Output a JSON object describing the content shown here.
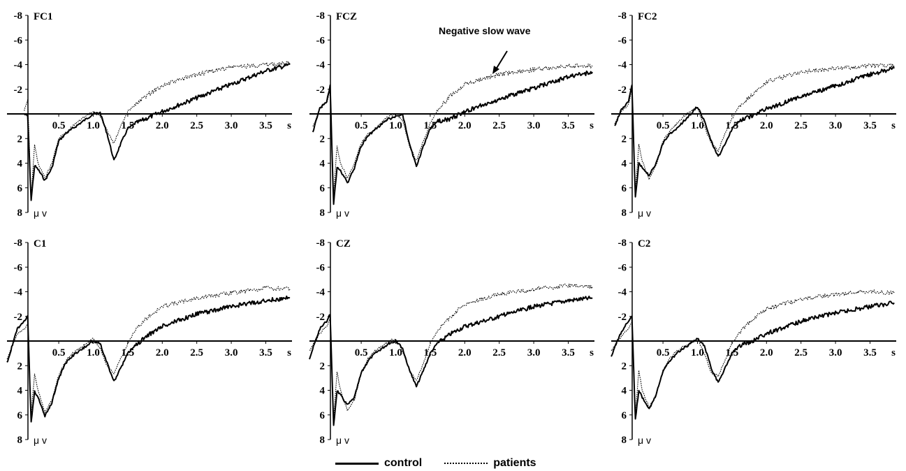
{
  "figure": {
    "annotation": "Negative slow wave",
    "colors": {
      "line": "#000000",
      "background": "#ffffff"
    }
  },
  "chart_data": [
    {
      "type": "line",
      "title": "FC1",
      "unit_label": "μ v",
      "x_unit_label": "s",
      "xlim": [
        -0.25,
        3.9
      ],
      "ylim": [
        -8,
        8
      ],
      "y_inverted": true,
      "x_ticks": [
        "0.5",
        "1.0",
        "1.5",
        "2.0",
        "2.5",
        "3.0",
        "3.5"
      ],
      "y_ticks": [
        "-8",
        "-6",
        "-4",
        "-2",
        "2",
        "4",
        "6",
        "8"
      ],
      "legend_position": "bottom-center",
      "series": [
        {
          "name": "control",
          "style": "solid",
          "x": [
            0,
            0.05,
            0.1,
            0.15,
            0.2,
            0.3,
            0.4,
            0.5,
            0.6,
            0.7,
            0.8,
            0.9,
            1.0,
            1.1,
            1.2,
            1.3,
            1.4,
            1.5,
            1.6,
            1.8,
            2.0,
            2.5,
            3.0,
            3.5,
            3.85
          ],
          "y": [
            0,
            0.2,
            7.0,
            4.2,
            4.5,
            5.4,
            4.4,
            2.2,
            1.6,
            1.2,
            0.8,
            0.4,
            0.0,
            -0.1,
            1.6,
            3.8,
            2.4,
            1.2,
            0.8,
            0.3,
            -0.2,
            -1.3,
            -2.4,
            -3.5,
            -4.0
          ]
        },
        {
          "name": "patients",
          "style": "dotted",
          "x": [
            0,
            0.05,
            0.1,
            0.15,
            0.2,
            0.3,
            0.4,
            0.5,
            0.6,
            0.7,
            0.8,
            0.9,
            1.0,
            1.1,
            1.2,
            1.3,
            1.4,
            1.5,
            1.6,
            1.8,
            2.0,
            2.5,
            3.0,
            3.5,
            3.85
          ],
          "y": [
            -0.3,
            -1.2,
            6.8,
            2.5,
            4.0,
            5.2,
            4.0,
            2.0,
            1.5,
            1.0,
            0.5,
            0.2,
            -0.2,
            0.2,
            1.4,
            2.4,
            1.0,
            -0.2,
            -0.7,
            -1.6,
            -2.3,
            -3.2,
            -3.8,
            -4.0,
            -4.1
          ]
        }
      ]
    },
    {
      "type": "line",
      "title": "FCZ",
      "unit_label": "μ v",
      "x_unit_label": "s",
      "xlim": [
        -0.25,
        3.9
      ],
      "ylim": [
        -8,
        8
      ],
      "y_inverted": true,
      "x_ticks": [
        "0.5",
        "1.0",
        "1.5",
        "2.0",
        "2.5",
        "3.0",
        "3.5"
      ],
      "y_ticks": [
        "-8",
        "-6",
        "-4",
        "-2",
        "2",
        "4",
        "6",
        "8"
      ],
      "series": [
        {
          "name": "control",
          "style": "solid",
          "x": [
            -0.2,
            -0.1,
            0,
            0.05,
            0.1,
            0.15,
            0.2,
            0.3,
            0.4,
            0.5,
            0.6,
            0.7,
            0.8,
            0.9,
            1.0,
            1.1,
            1.2,
            1.3,
            1.4,
            1.5,
            1.6,
            1.8,
            2.0,
            2.5,
            3.0,
            3.5,
            3.85
          ],
          "y": [
            1.5,
            -0.5,
            -1.0,
            -2.3,
            7.4,
            4.3,
            4.6,
            5.6,
            4.4,
            2.6,
            1.8,
            1.3,
            0.8,
            0.4,
            0.2,
            0.1,
            2.4,
            4.3,
            2.6,
            1.2,
            0.6,
            0.4,
            -0.2,
            -1.2,
            -2.1,
            -3.0,
            -3.4
          ]
        },
        {
          "name": "patients",
          "style": "dotted",
          "x": [
            -0.2,
            -0.1,
            0,
            0.05,
            0.1,
            0.15,
            0.2,
            0.3,
            0.4,
            0.5,
            0.6,
            0.7,
            0.8,
            0.9,
            1.0,
            1.1,
            1.2,
            1.3,
            1.4,
            1.5,
            1.6,
            1.8,
            2.0,
            2.5,
            3.0,
            3.5,
            3.85
          ],
          "y": [
            1.0,
            -0.4,
            -0.9,
            -2.0,
            6.6,
            2.6,
            4.0,
            5.2,
            4.0,
            2.4,
            1.6,
            1.2,
            0.6,
            0.2,
            0.0,
            0.5,
            2.6,
            3.8,
            2.2,
            0.8,
            -0.3,
            -1.5,
            -2.4,
            -3.2,
            -3.6,
            -3.9,
            -3.9
          ]
        }
      ]
    },
    {
      "type": "line",
      "title": "FC2",
      "unit_label": "μ v",
      "x_unit_label": "s",
      "xlim": [
        -0.25,
        3.9
      ],
      "ylim": [
        -8,
        8
      ],
      "y_inverted": true,
      "x_ticks": [
        "0.5",
        "1.0",
        "1.5",
        "2.0",
        "2.5",
        "3.0",
        "3.5"
      ],
      "y_ticks": [
        "-8",
        "-6",
        "-4",
        "-2",
        "2",
        "4",
        "6",
        "8"
      ],
      "series": [
        {
          "name": "control",
          "style": "solid",
          "x": [
            -0.2,
            -0.1,
            0,
            0.05,
            0.1,
            0.15,
            0.2,
            0.3,
            0.4,
            0.5,
            0.6,
            0.7,
            0.8,
            0.9,
            1.0,
            1.1,
            1.2,
            1.3,
            1.4,
            1.5,
            1.6,
            1.8,
            2.0,
            2.5,
            3.0,
            3.5,
            3.85
          ],
          "y": [
            1.0,
            -0.4,
            -1.0,
            -2.3,
            6.8,
            4.0,
            4.4,
            5.0,
            4.0,
            2.4,
            1.6,
            1.2,
            0.6,
            0.0,
            -0.6,
            0.6,
            2.2,
            3.5,
            2.4,
            1.2,
            0.6,
            0.1,
            -0.4,
            -1.4,
            -2.3,
            -3.2,
            -3.7
          ]
        },
        {
          "name": "patients",
          "style": "dotted",
          "x": [
            -0.2,
            -0.1,
            0,
            0.05,
            0.1,
            0.15,
            0.2,
            0.3,
            0.4,
            0.5,
            0.6,
            0.7,
            0.8,
            0.9,
            1.0,
            1.1,
            1.2,
            1.3,
            1.4,
            1.5,
            1.6,
            1.8,
            2.0,
            2.5,
            3.0,
            3.5,
            3.85
          ],
          "y": [
            0.8,
            -0.2,
            -0.8,
            -2.0,
            6.4,
            2.4,
            3.8,
            5.3,
            4.2,
            2.2,
            1.4,
            0.8,
            0.2,
            -0.2,
            -0.5,
            1.0,
            2.4,
            3.0,
            1.6,
            0.4,
            -0.6,
            -1.6,
            -2.6,
            -3.4,
            -3.7,
            -3.9,
            -3.9
          ]
        }
      ]
    },
    {
      "type": "line",
      "title": "C1",
      "unit_label": "μ v",
      "x_unit_label": "s",
      "xlim": [
        -0.25,
        3.9
      ],
      "ylim": [
        -8,
        8
      ],
      "y_inverted": true,
      "x_ticks": [
        "0.5",
        "1.0",
        "1.5",
        "2.0",
        "2.5",
        "3.0",
        "3.5"
      ],
      "y_ticks": [
        "-8",
        "-6",
        "-4",
        "-2",
        "2",
        "4",
        "6",
        "8"
      ],
      "series": [
        {
          "name": "control",
          "style": "solid",
          "x": [
            -0.25,
            -0.1,
            0,
            0.05,
            0.1,
            0.15,
            0.2,
            0.3,
            0.4,
            0.5,
            0.6,
            0.7,
            0.8,
            0.9,
            1.0,
            1.1,
            1.2,
            1.3,
            1.4,
            1.5,
            1.6,
            1.8,
            2.0,
            2.5,
            3.0,
            3.5,
            3.85
          ],
          "y": [
            1.8,
            -1.0,
            -1.6,
            -2.0,
            6.6,
            4.1,
            4.6,
            6.1,
            5.0,
            3.0,
            1.8,
            1.2,
            0.8,
            0.4,
            0.0,
            0.2,
            1.8,
            3.3,
            2.2,
            1.0,
            0.4,
            -0.5,
            -1.2,
            -2.2,
            -2.8,
            -3.3,
            -3.5
          ]
        },
        {
          "name": "patients",
          "style": "dotted",
          "x": [
            -0.25,
            -0.1,
            0,
            0.05,
            0.1,
            0.15,
            0.2,
            0.3,
            0.4,
            0.5,
            0.6,
            0.7,
            0.8,
            0.9,
            1.0,
            1.1,
            1.2,
            1.3,
            1.4,
            1.5,
            1.6,
            1.8,
            2.0,
            2.5,
            3.0,
            3.5,
            3.85
          ],
          "y": [
            1.5,
            -0.6,
            -1.0,
            -1.4,
            6.0,
            2.6,
            4.0,
            5.8,
            4.8,
            2.8,
            1.6,
            1.0,
            0.6,
            0.2,
            -0.2,
            0.6,
            2.0,
            2.6,
            1.4,
            0.2,
            -0.8,
            -2.0,
            -2.8,
            -3.5,
            -3.9,
            -4.3,
            -4.2
          ]
        }
      ]
    },
    {
      "type": "line",
      "title": "CZ",
      "unit_label": "μ v",
      "x_unit_label": "s",
      "xlim": [
        -0.25,
        3.9
      ],
      "ylim": [
        -8,
        8
      ],
      "y_inverted": true,
      "x_ticks": [
        "0.5",
        "1.0",
        "1.5",
        "2.0",
        "2.5",
        "3.0",
        "3.5"
      ],
      "y_ticks": [
        "-8",
        "-6",
        "-4",
        "-2",
        "2",
        "4",
        "6",
        "8"
      ],
      "series": [
        {
          "name": "control",
          "style": "solid",
          "x": [
            -0.25,
            -0.1,
            0,
            0.05,
            0.1,
            0.15,
            0.2,
            0.3,
            0.4,
            0.5,
            0.6,
            0.7,
            0.8,
            0.9,
            1.0,
            1.1,
            1.2,
            1.3,
            1.4,
            1.5,
            1.6,
            1.8,
            2.0,
            2.5,
            3.0,
            3.5,
            3.85
          ],
          "y": [
            1.4,
            -1.0,
            -1.6,
            -2.2,
            6.9,
            4.0,
            4.4,
            5.2,
            4.6,
            2.6,
            1.6,
            1.0,
            0.6,
            0.2,
            0.0,
            0.6,
            2.4,
            3.7,
            2.4,
            1.0,
            0.2,
            -0.6,
            -1.2,
            -2.0,
            -2.8,
            -3.3,
            -3.5
          ]
        },
        {
          "name": "patients",
          "style": "dotted",
          "x": [
            -0.25,
            -0.1,
            0,
            0.05,
            0.1,
            0.15,
            0.2,
            0.3,
            0.4,
            0.5,
            0.6,
            0.7,
            0.8,
            0.9,
            1.0,
            1.1,
            1.2,
            1.3,
            1.4,
            1.5,
            1.6,
            1.8,
            2.0,
            2.5,
            3.0,
            3.5,
            3.85
          ],
          "y": [
            0.8,
            -0.6,
            -1.2,
            -1.8,
            6.4,
            2.5,
            4.0,
            5.6,
            4.8,
            2.6,
            1.4,
            0.8,
            0.4,
            0.0,
            -0.2,
            0.8,
            2.4,
            3.2,
            1.8,
            0.2,
            -0.8,
            -2.0,
            -3.0,
            -3.8,
            -4.2,
            -4.5,
            -4.4
          ]
        }
      ]
    },
    {
      "type": "line",
      "title": "C2",
      "unit_label": "μ v",
      "x_unit_label": "s",
      "xlim": [
        -0.25,
        3.9
      ],
      "ylim": [
        -8,
        8
      ],
      "y_inverted": true,
      "x_ticks": [
        "0.5",
        "1.0",
        "1.5",
        "2.0",
        "2.5",
        "3.0",
        "3.5"
      ],
      "y_ticks": [
        "-8",
        "-6",
        "-4",
        "-2",
        "2",
        "4",
        "6",
        "8"
      ],
      "series": [
        {
          "name": "control",
          "style": "solid",
          "x": [
            -0.25,
            -0.1,
            0,
            0.05,
            0.1,
            0.15,
            0.2,
            0.3,
            0.4,
            0.5,
            0.6,
            0.7,
            0.8,
            0.9,
            1.0,
            1.1,
            1.2,
            1.3,
            1.4,
            1.5,
            1.6,
            1.8,
            2.0,
            2.5,
            3.0,
            3.5,
            3.85
          ],
          "y": [
            1.2,
            -0.8,
            -1.6,
            -2.0,
            6.4,
            4.0,
            4.6,
            5.5,
            4.4,
            2.4,
            1.6,
            1.0,
            0.6,
            0.2,
            -0.2,
            0.4,
            2.2,
            3.4,
            2.2,
            1.0,
            0.4,
            0.0,
            -0.6,
            -1.6,
            -2.3,
            -2.8,
            -3.1
          ]
        },
        {
          "name": "patients",
          "style": "dotted",
          "x": [
            -0.25,
            -0.1,
            0,
            0.05,
            0.1,
            0.15,
            0.2,
            0.3,
            0.4,
            0.5,
            0.6,
            0.7,
            0.8,
            0.9,
            1.0,
            1.1,
            1.2,
            1.3,
            1.4,
            1.5,
            1.6,
            1.8,
            2.0,
            2.5,
            3.0,
            3.5,
            3.85
          ],
          "y": [
            0.8,
            -0.4,
            -1.0,
            -1.6,
            6.0,
            2.4,
            4.0,
            5.4,
            4.4,
            2.4,
            1.4,
            0.8,
            0.4,
            0.2,
            -0.2,
            1.0,
            2.6,
            2.8,
            1.6,
            0.2,
            -0.6,
            -1.8,
            -2.6,
            -3.4,
            -3.8,
            -4.0,
            -3.9
          ]
        }
      ]
    }
  ],
  "legend": {
    "items": [
      {
        "label": "control",
        "style": "solid"
      },
      {
        "label": "patients",
        "style": "dotted"
      }
    ]
  }
}
